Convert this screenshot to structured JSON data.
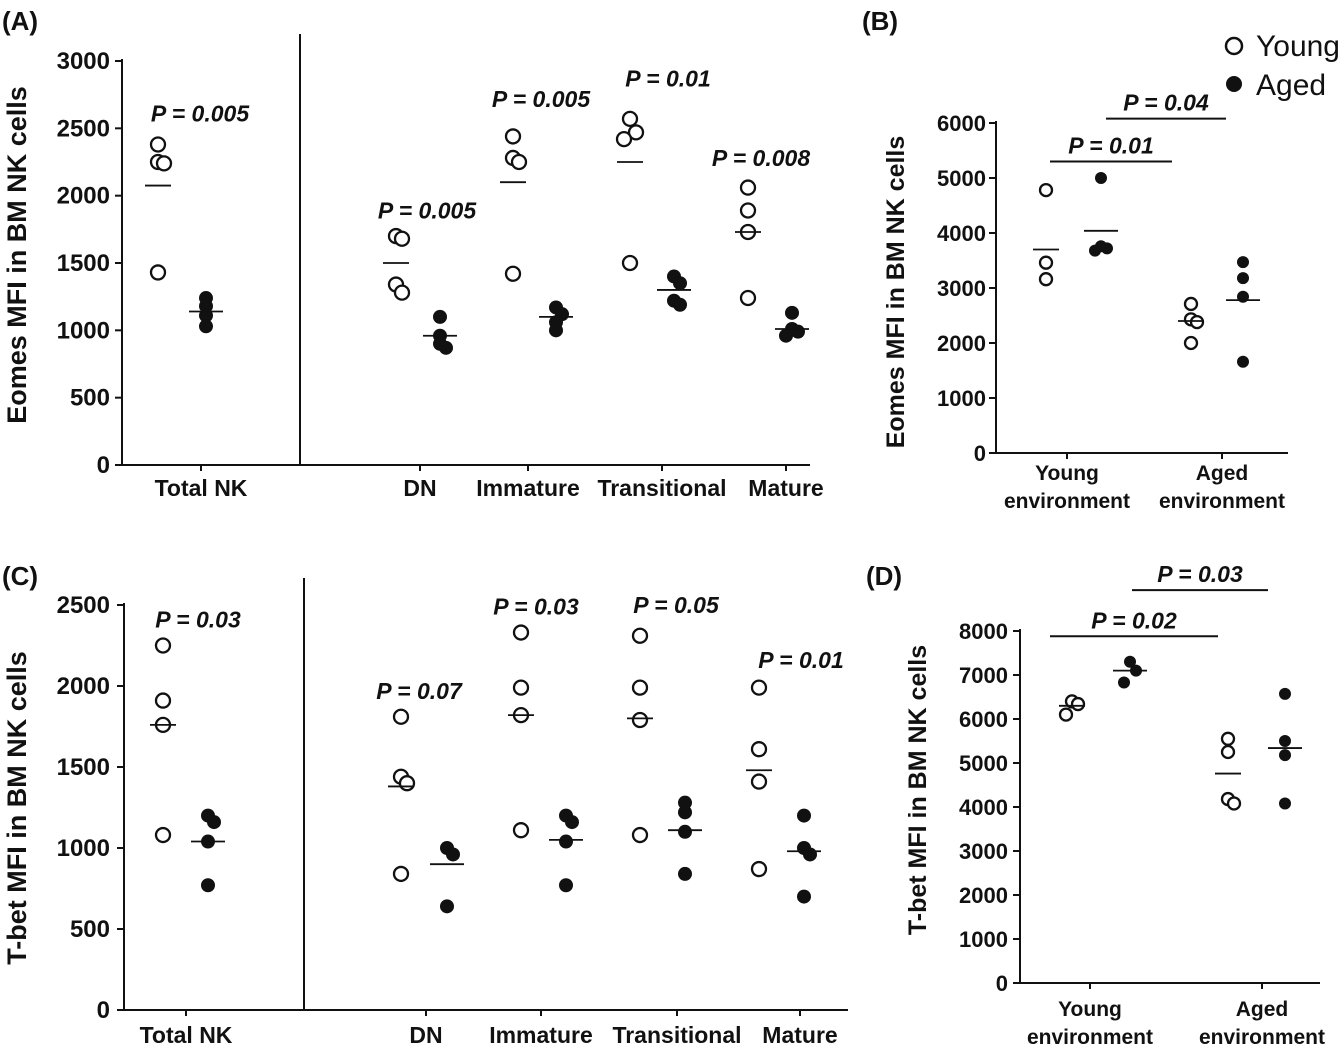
{
  "colors": {
    "ink": "#111111",
    "background": "#ffffff",
    "young_fill": "#ffffff",
    "aged_fill": "#111111"
  },
  "legend": {
    "young": "Young",
    "aged": "Aged"
  },
  "chart_data": [
    {
      "panel": "(A)",
      "type": "scatter",
      "ylabel": "Eomes MFI in BM NK cells",
      "ylim": [
        0,
        3000
      ],
      "yticks": [
        "0",
        "500",
        "1000",
        "1500",
        "2000",
        "2500",
        "3000"
      ],
      "groups": [
        {
          "label": "Total NK",
          "pvalue": "P = 0.005",
          "pvalue_y": 2550,
          "young": [
            2380,
            2250,
            2240,
            1430
          ],
          "young_mean": 2075,
          "aged": [
            1240,
            1180,
            1110,
            1030
          ],
          "aged_mean": 1140
        },
        {
          "label": "DN",
          "pvalue": "P = 0.005",
          "pvalue_y": 1830,
          "young": [
            1700,
            1680,
            1340,
            1280
          ],
          "young_mean": 1500,
          "aged": [
            1100,
            960,
            900,
            870
          ],
          "aged_mean": 960
        },
        {
          "label": "Immature",
          "pvalue": "P = 0.005",
          "pvalue_y": 2660,
          "young": [
            2440,
            2280,
            2250,
            1420
          ],
          "young_mean": 2100,
          "aged": [
            1170,
            1120,
            1060,
            1000
          ],
          "aged_mean": 1100
        },
        {
          "label": "Transitional",
          "pvalue": "P = 0.01",
          "pvalue_y": 2810,
          "young": [
            2570,
            2470,
            2420,
            1500
          ],
          "young_mean": 2250,
          "aged": [
            1400,
            1350,
            1220,
            1190
          ],
          "aged_mean": 1300
        },
        {
          "label": "Mature",
          "pvalue": "P = 0.008",
          "pvalue_y": 2220,
          "young": [
            2060,
            1890,
            1730,
            1240
          ],
          "young_mean": 1730,
          "aged": [
            1130,
            1010,
            990,
            960
          ],
          "aged_mean": 1010
        }
      ]
    },
    {
      "panel": "(B)",
      "type": "scatter",
      "ylabel": "Eomes MFI in BM NK cells",
      "ylim": [
        0,
        6000
      ],
      "yticks": [
        "0",
        "1000",
        "2000",
        "3000",
        "4000",
        "5000",
        "6000"
      ],
      "groups": [
        {
          "label": [
            "Young",
            "environment"
          ],
          "young": [
            4780,
            3460,
            3160
          ],
          "young_mean": 3700,
          "aged": [
            5000,
            3760,
            3720,
            3680
          ],
          "aged_mean": 4040
        },
        {
          "label": [
            "Aged",
            "environment"
          ],
          "young": [
            2710,
            2430,
            2380,
            2000
          ],
          "young_mean": 2400,
          "aged": [
            3470,
            3180,
            2840,
            1660
          ],
          "aged_mean": 2780
        }
      ],
      "comparisons": [
        {
          "text": "P = 0.01",
          "y": 5300,
          "from": 0.2,
          "to": 1.3
        },
        {
          "text": "P = 0.04",
          "y": 6080,
          "from": 0.8,
          "to": 1.8
        }
      ]
    },
    {
      "panel": "(C)",
      "type": "scatter",
      "ylabel": "T-bet MFI in BM NK cells",
      "ylim": [
        0,
        2500
      ],
      "yticks": [
        "0",
        "500",
        "1000",
        "1500",
        "2000",
        "2500"
      ],
      "groups": [
        {
          "label": "Total NK",
          "pvalue": "P = 0.03",
          "pvalue_y": 2360,
          "young": [
            2250,
            1910,
            1760,
            1080
          ],
          "young_mean": 1760,
          "aged": [
            1200,
            1160,
            1040,
            770
          ],
          "aged_mean": 1040
        },
        {
          "label": "DN",
          "pvalue": "P = 0.07",
          "pvalue_y": 1920,
          "young": [
            1810,
            1440,
            1400,
            840
          ],
          "young_mean": 1380,
          "aged": [
            1000,
            960,
            640
          ],
          "aged_mean": 900
        },
        {
          "label": "Immature",
          "pvalue": "P = 0.03",
          "pvalue_y": 2440,
          "young": [
            2330,
            1990,
            1820,
            1110
          ],
          "young_mean": 1820,
          "aged": [
            1200,
            1160,
            1040,
            770
          ],
          "aged_mean": 1050
        },
        {
          "label": "Transitional",
          "pvalue": "P = 0.05",
          "pvalue_y": 2450,
          "young": [
            2310,
            1990,
            1790,
            1080
          ],
          "young_mean": 1800,
          "aged": [
            1280,
            1220,
            1100,
            840
          ],
          "aged_mean": 1110
        },
        {
          "label": "Mature",
          "pvalue": "P = 0.01",
          "pvalue_y": 2110,
          "young": [
            1990,
            1610,
            1410,
            870
          ],
          "young_mean": 1480,
          "aged": [
            1200,
            1000,
            960,
            700
          ],
          "aged_mean": 980
        }
      ]
    },
    {
      "panel": "(D)",
      "type": "scatter",
      "ylabel": "T-bet MFI in BM NK cells",
      "ylim": [
        0,
        8000
      ],
      "yticks": [
        "0",
        "1000",
        "2000",
        "3000",
        "4000",
        "5000",
        "6000",
        "7000",
        "8000"
      ],
      "groups": [
        {
          "label": [
            "Young",
            "environment"
          ],
          "young": [
            6400,
            6340,
            6100
          ],
          "young_mean": 6300,
          "aged": [
            7300,
            7100,
            6830
          ],
          "aged_mean": 7100
        },
        {
          "label": [
            "Aged",
            "environment"
          ],
          "young": [
            5550,
            5250,
            4180,
            4080
          ],
          "young_mean": 4760,
          "aged": [
            6570,
            5500,
            5180,
            4080
          ],
          "aged_mean": 5340
        }
      ],
      "comparisons": [
        {
          "text": "P = 0.02",
          "y": 7880,
          "from": 0.2,
          "to": 1.3
        },
        {
          "text": "P = 0.03",
          "y": 8930,
          "from": 0.8,
          "to": 1.8
        }
      ]
    }
  ]
}
